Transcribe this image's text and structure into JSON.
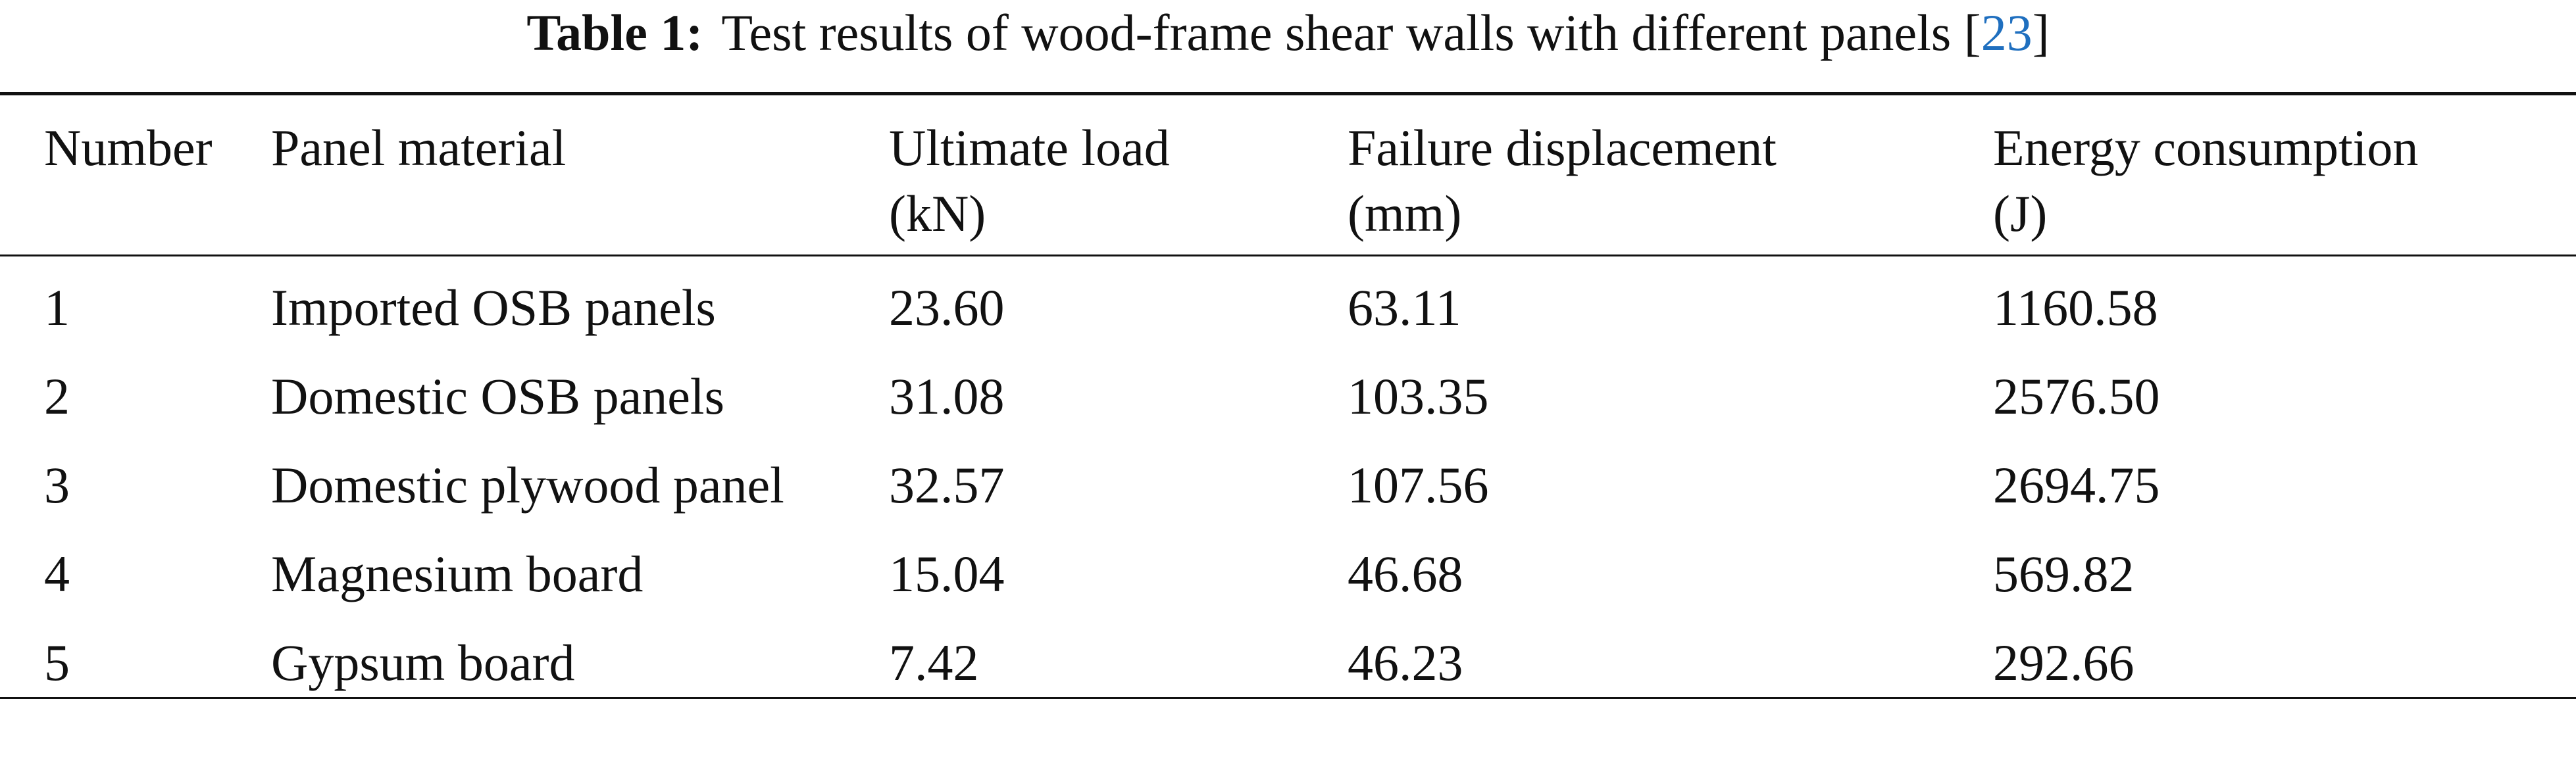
{
  "caption": {
    "label": "Table 1:",
    "text": "Test results of wood-frame shear walls with different panels",
    "ref_open": "[",
    "ref": "23",
    "ref_close": "]"
  },
  "table": {
    "columns": [
      {
        "name": "Number"
      },
      {
        "name": "Panel material"
      },
      {
        "name": "Ultimate load",
        "unit": "(kN)"
      },
      {
        "name": "Failure displacement",
        "unit": "(mm)"
      },
      {
        "name": "Energy consumption",
        "unit": "(J)"
      }
    ],
    "rows": [
      [
        "1",
        "Imported OSB panels",
        "23.60",
        "63.11",
        "1160.58"
      ],
      [
        "2",
        "Domestic OSB panels",
        "31.08",
        "103.35",
        "2576.50"
      ],
      [
        "3",
        "Domestic plywood panel",
        "32.57",
        "107.56",
        "2694.75"
      ],
      [
        "4",
        "Magnesium board",
        "15.04",
        "46.68",
        "569.82"
      ],
      [
        "5",
        "Gypsum board",
        "7.42",
        "46.23",
        "292.66"
      ]
    ]
  }
}
